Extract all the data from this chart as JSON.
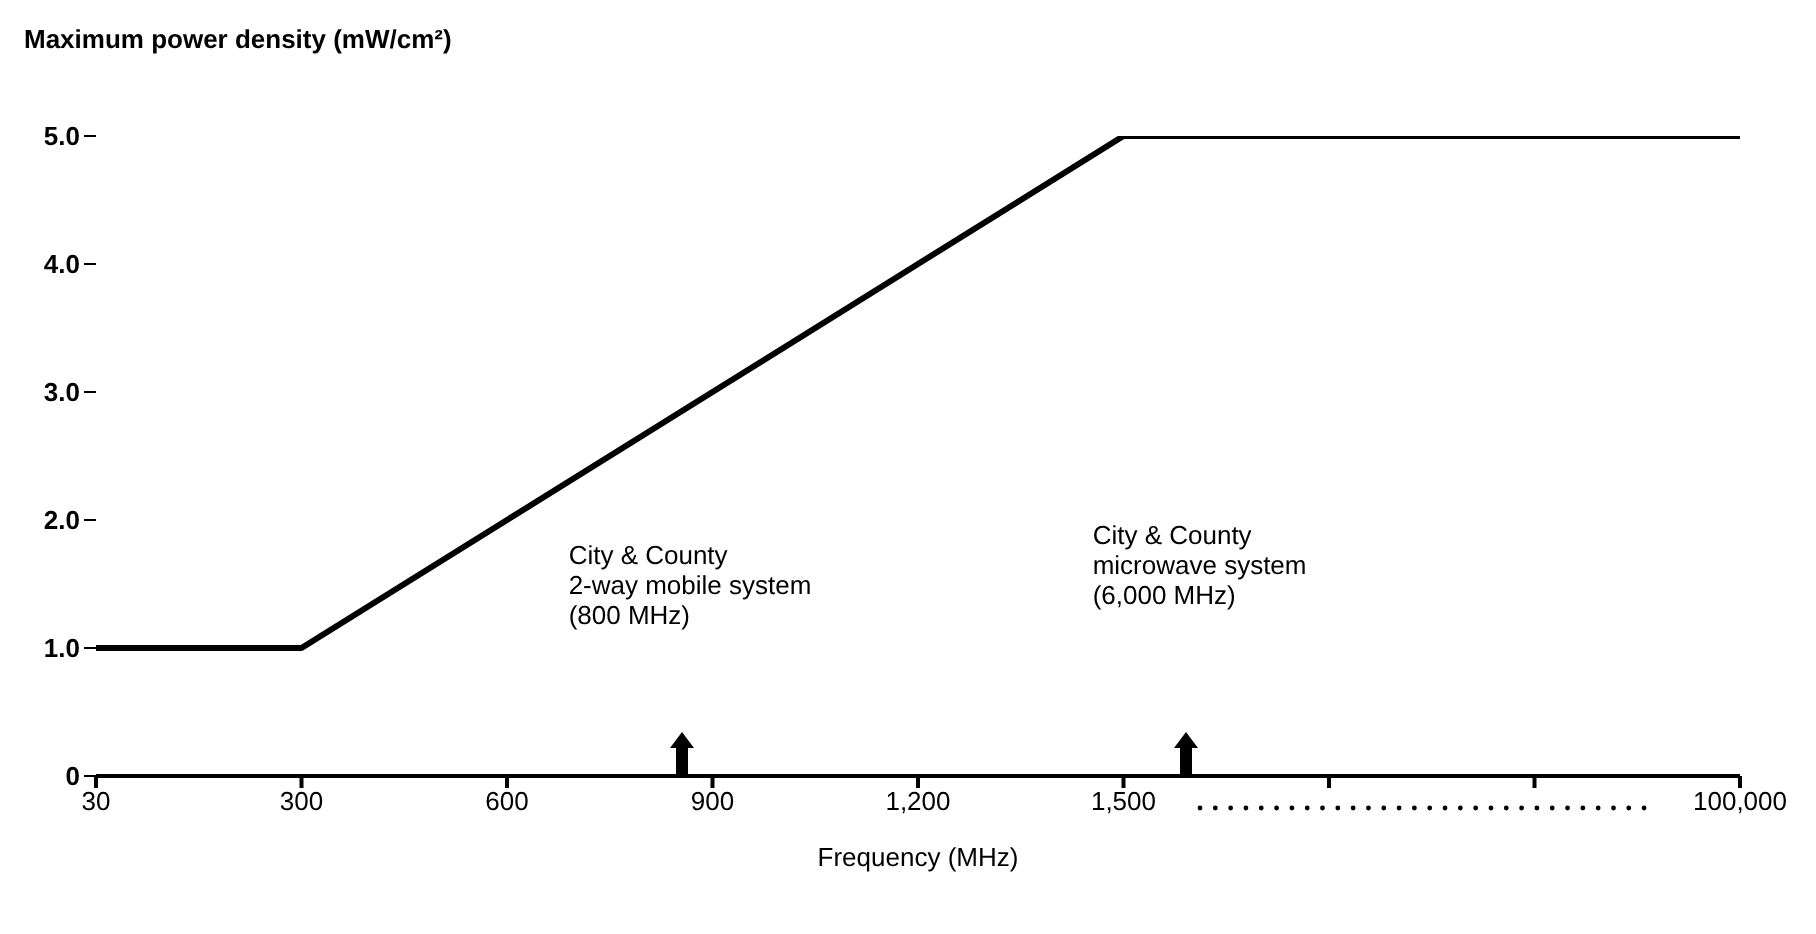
{
  "chart_data": {
    "type": "line",
    "ylabel": "Maximum power density (mW/cm²)",
    "xlabel": "Frequency (MHz)",
    "categories": [
      "30",
      "300",
      "600",
      "900",
      "1,200",
      "1,500",
      null,
      null,
      "100,000"
    ],
    "series": [
      {
        "color": "#000000",
        "values": [
          1,
          1,
          2,
          3,
          4,
          5,
          5,
          5,
          5
        ]
      }
    ],
    "ylim": [
      0,
      5
    ],
    "yticks": [
      0,
      {
        "value": 1,
        "label": "1.0"
      },
      {
        "value": 2,
        "label": "2.0"
      },
      {
        "value": 3,
        "label": "3.0"
      },
      {
        "value": 4,
        "label": "4.0"
      },
      {
        "value": 5,
        "label": "5.0"
      }
    ],
    "annotations": [
      "City & County\n2-way mobile system\n(800 MHz)",
      "City & County\nmicrowave system\n(6,000 MHz)"
    ],
    "grid": false,
    "legend": false,
    "marker": "none",
    "line_style": "solid"
  }
}
